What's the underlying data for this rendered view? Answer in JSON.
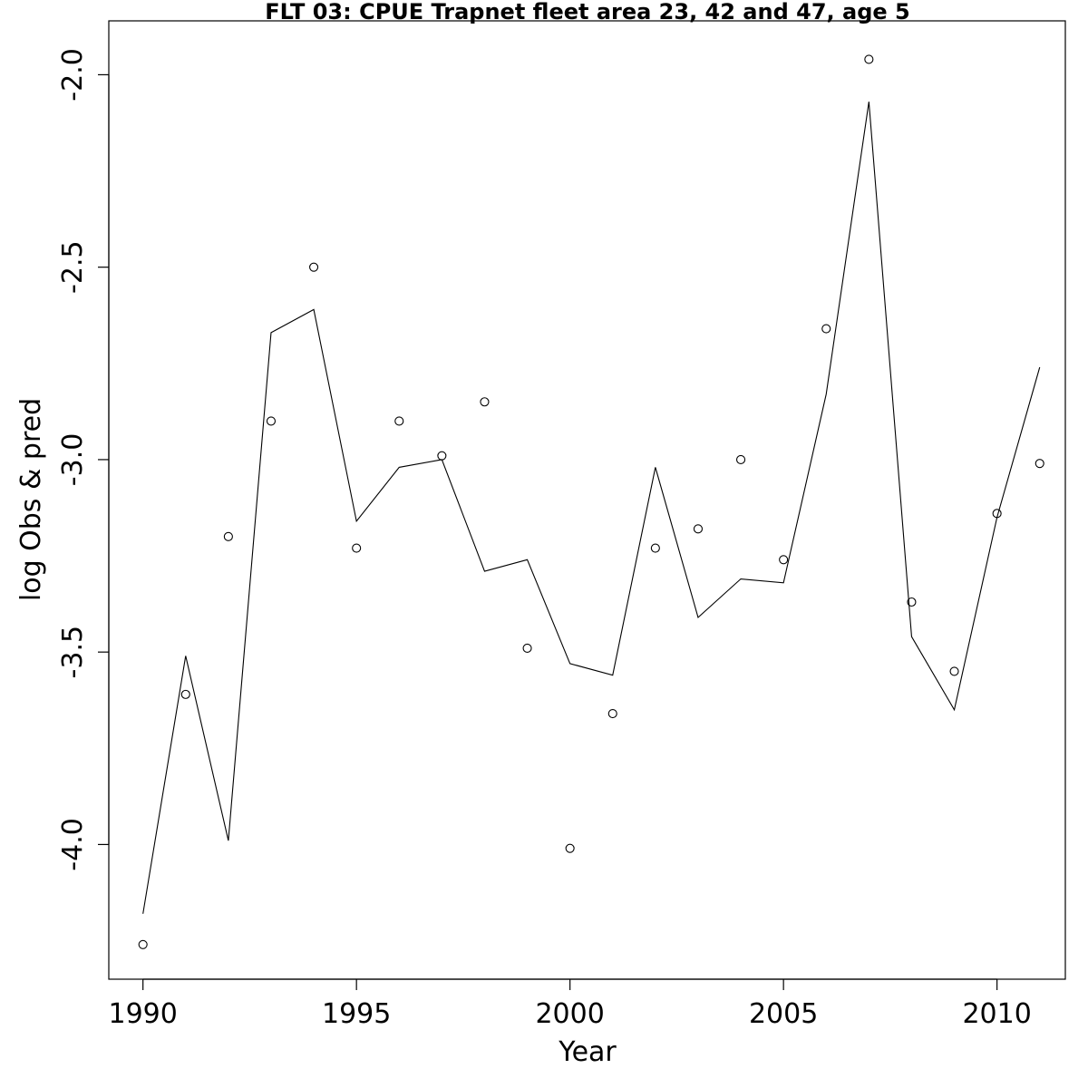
{
  "chart_data": {
    "type": "line",
    "title": "FLT 03: CPUE Trapnet fleet area 23, 42 and 47, age 5",
    "xlabel": "Year",
    "ylabel": "log Obs & pred",
    "x": [
      1990,
      1991,
      1992,
      1993,
      1994,
      1995,
      1996,
      1997,
      1998,
      1999,
      2000,
      2001,
      2002,
      2003,
      2004,
      2005,
      2006,
      2007,
      2008,
      2009,
      2010,
      2011
    ],
    "series": [
      {
        "style": "points",
        "values": [
          -4.26,
          -3.61,
          -3.2,
          -2.9,
          -2.5,
          -3.23,
          -2.9,
          -2.99,
          -2.85,
          -3.49,
          -4.01,
          -3.66,
          -3.23,
          -3.18,
          -3.0,
          -3.26,
          -2.66,
          -1.96,
          -3.37,
          -3.55,
          -3.14,
          -3.01
        ]
      },
      {
        "style": "line",
        "values": [
          -4.18,
          -3.51,
          -3.99,
          -2.67,
          -2.61,
          -3.16,
          -3.02,
          -3.0,
          -3.29,
          -3.26,
          -3.53,
          -3.56,
          -3.02,
          -3.41,
          -3.31,
          -3.32,
          -2.83,
          -2.07,
          -3.46,
          -3.65,
          -3.15,
          -2.76
        ]
      }
    ],
    "xlim": [
      1989.2,
      2011.6
    ],
    "ylim": [
      -4.35,
      -1.86
    ],
    "x_ticks": [
      1990,
      1995,
      2000,
      2005,
      2010
    ],
    "x_tick_labels": [
      "1990",
      "1995",
      "2000",
      "2005",
      "2010"
    ],
    "y_ticks": [
      -4.0,
      -3.5,
      -3.0,
      -2.5,
      -2.0
    ],
    "y_tick_labels": [
      "-4.0",
      "-3.5",
      "-3.0",
      "-2.5",
      "-2.0"
    ],
    "grid": false,
    "legend": "none"
  }
}
